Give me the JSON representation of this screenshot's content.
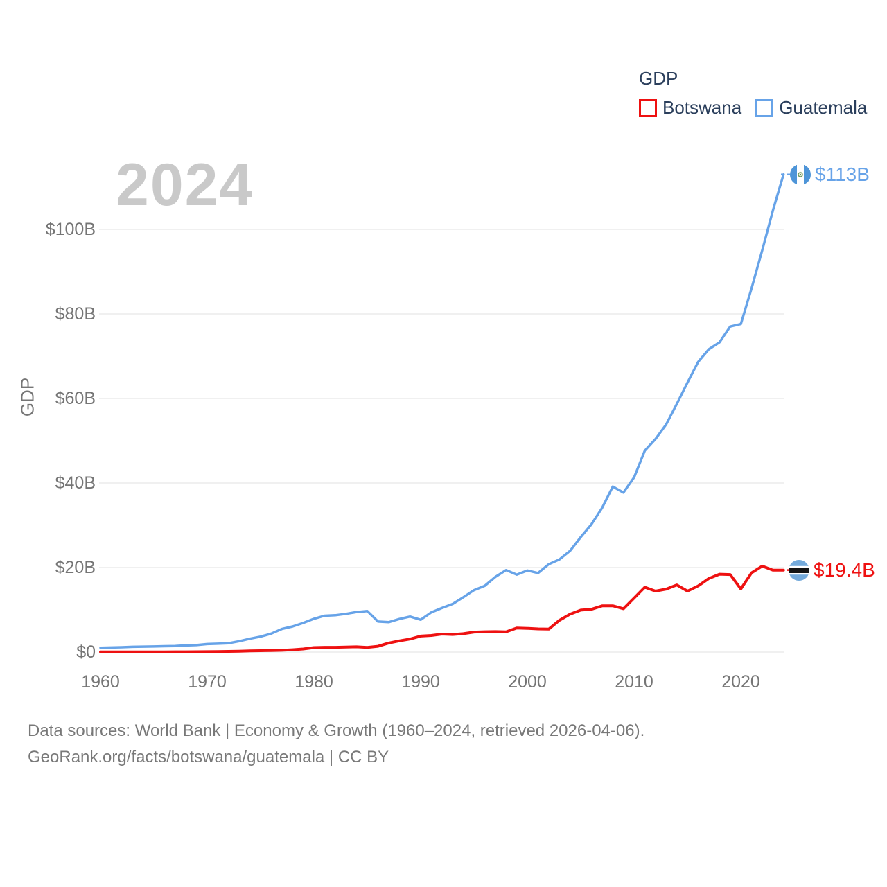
{
  "watermark": "2024",
  "legend": {
    "title": "GDP"
  },
  "y_axis": {
    "title": "GDP",
    "ticks": [
      "$0",
      "$20B",
      "$40B",
      "$60B",
      "$80B",
      "$100B"
    ]
  },
  "x_axis": {
    "ticks": [
      "1960",
      "1970",
      "1980",
      "1990",
      "2000",
      "2010",
      "2020"
    ]
  },
  "footer": {
    "line1": "Data sources: World Bank | Economy & Growth (1960–2024, retrieved 2026-04-06).",
    "line2": "GeoRank.org/facts/botswana/guatemala | CC BY"
  },
  "chart_data": {
    "type": "line",
    "title": "GDP",
    "xlabel": "",
    "ylabel": "GDP",
    "xlim": [
      1960,
      2024
    ],
    "ylim": [
      0,
      115
    ],
    "grid": "horizontal",
    "legend_position": "top-right",
    "xtick_values": [
      1960,
      1970,
      1980,
      1990,
      2000,
      2010,
      2020
    ],
    "ytick_values": [
      0,
      20,
      40,
      60,
      80,
      100
    ],
    "x": [
      1960,
      1961,
      1962,
      1963,
      1964,
      1965,
      1966,
      1967,
      1968,
      1969,
      1970,
      1971,
      1972,
      1973,
      1974,
      1975,
      1976,
      1977,
      1978,
      1979,
      1980,
      1981,
      1982,
      1983,
      1984,
      1985,
      1986,
      1987,
      1988,
      1989,
      1990,
      1991,
      1992,
      1993,
      1994,
      1995,
      1996,
      1997,
      1998,
      1999,
      2000,
      2001,
      2002,
      2003,
      2004,
      2005,
      2006,
      2007,
      2008,
      2009,
      2010,
      2011,
      2012,
      2013,
      2014,
      2015,
      2016,
      2017,
      2018,
      2019,
      2020,
      2021,
      2022,
      2023,
      2024
    ],
    "series": [
      {
        "name": "Botswana",
        "color": "#ee1111",
        "end_label": "$19.4B",
        "values": [
          0.03,
          0.03,
          0.04,
          0.04,
          0.04,
          0.05,
          0.05,
          0.06,
          0.07,
          0.09,
          0.1,
          0.12,
          0.16,
          0.22,
          0.29,
          0.33,
          0.36,
          0.43,
          0.55,
          0.73,
          1.06,
          1.13,
          1.13,
          1.19,
          1.24,
          1.11,
          1.37,
          2.14,
          2.65,
          3.08,
          3.79,
          3.93,
          4.26,
          4.17,
          4.36,
          4.73,
          4.82,
          4.86,
          4.79,
          5.7,
          5.63,
          5.49,
          5.44,
          7.53,
          8.99,
          9.93,
          10.13,
          10.94,
          10.95,
          10.27,
          12.79,
          15.35,
          14.42,
          14.9,
          15.88,
          14.42,
          15.65,
          17.41,
          18.42,
          18.34,
          14.93,
          18.74,
          20.35,
          19.39,
          19.4
        ]
      },
      {
        "name": "Guatemala",
        "color": "#67a3e8",
        "end_label": "$113B",
        "values": [
          1.04,
          1.08,
          1.14,
          1.24,
          1.3,
          1.33,
          1.39,
          1.45,
          1.57,
          1.66,
          1.9,
          1.98,
          2.1,
          2.57,
          3.16,
          3.65,
          4.37,
          5.48,
          6.07,
          6.9,
          7.88,
          8.61,
          8.72,
          9.05,
          9.47,
          9.72,
          7.23,
          7.08,
          7.84,
          8.41,
          7.65,
          9.41,
          10.44,
          11.4,
          12.98,
          14.66,
          15.67,
          17.79,
          19.4,
          18.32,
          19.29,
          18.7,
          20.78,
          21.92,
          23.97,
          27.21,
          30.23,
          34.11,
          39.14,
          37.73,
          41.34,
          47.65,
          50.39,
          53.85,
          58.72,
          63.77,
          68.66,
          71.64,
          73.28,
          77.02,
          77.6,
          86.01,
          95.03,
          104.45,
          113.0
        ]
      }
    ]
  }
}
